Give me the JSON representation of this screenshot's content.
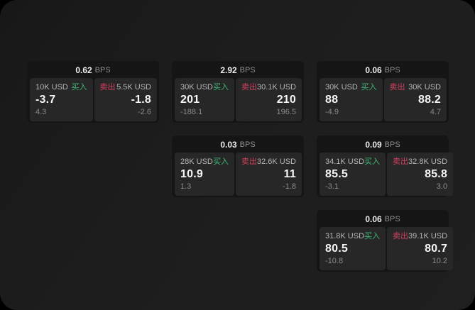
{
  "labels": {
    "buy": "买入",
    "sell": "卖出",
    "bps_unit": "BPS"
  },
  "colors": {
    "buy": "#3eb877",
    "sell": "#d4405e",
    "page_bg": "#1d1d1d",
    "card_bg": "#151515",
    "panel_bg": "#272727"
  },
  "cards": [
    {
      "bps": "0.62",
      "row": 1,
      "col": 1,
      "buy": {
        "amount": "10K USD",
        "value": "-3.7",
        "delta": "4.3"
      },
      "sell": {
        "amount": "5.5K USD",
        "value": "-1.8",
        "delta": "-2.6"
      }
    },
    {
      "bps": "2.92",
      "row": 1,
      "col": 2,
      "buy": {
        "amount": "30K USD",
        "value": "201",
        "delta": "-188.1"
      },
      "sell": {
        "amount": "30.1K USD",
        "value": "210",
        "delta": "196.5"
      }
    },
    {
      "bps": "0.06",
      "row": 1,
      "col": 3,
      "buy": {
        "amount": "30K USD",
        "value": "88",
        "delta": "-4.9"
      },
      "sell": {
        "amount": "30K USD",
        "value": "88.2",
        "delta": "4.7"
      }
    },
    {
      "bps": "0.03",
      "row": 2,
      "col": 2,
      "buy": {
        "amount": "28K USD",
        "value": "10.9",
        "delta": "1.3"
      },
      "sell": {
        "amount": "32.6K USD",
        "value": "11",
        "delta": "-1.8"
      }
    },
    {
      "bps": "0.09",
      "row": 2,
      "col": 3,
      "buy": {
        "amount": "34.1K USD",
        "value": "85.5",
        "delta": "-3.1"
      },
      "sell": {
        "amount": "32.8K USD",
        "value": "85.8",
        "delta": "3.0"
      }
    },
    {
      "bps": "0.06",
      "row": 3,
      "col": 3,
      "buy": {
        "amount": "31.8K USD",
        "value": "80.5",
        "delta": "-10.8"
      },
      "sell": {
        "amount": "39.1K USD",
        "value": "80.7",
        "delta": "10.2"
      }
    }
  ]
}
